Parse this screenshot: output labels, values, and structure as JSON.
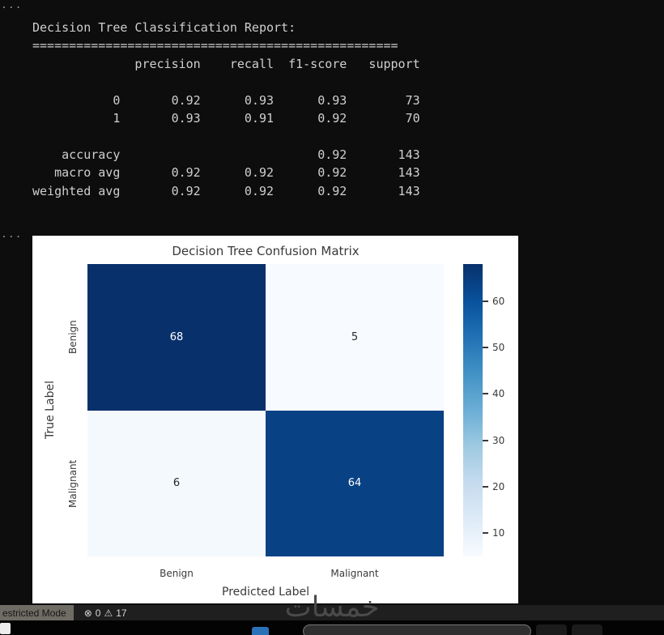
{
  "editor": {
    "overflow_indicator": "..."
  },
  "report": {
    "lines": [
      "Decision Tree Classification Report:",
      "==================================================",
      "              precision    recall  f1-score   support",
      "",
      "           0       0.92      0.93      0.93        73",
      "           1       0.93      0.91      0.92        70",
      "",
      "    accuracy                           0.92       143",
      "   macro avg       0.92      0.92      0.92       143",
      "weighted avg       0.92      0.92      0.92       143"
    ]
  },
  "chart_data": {
    "type": "heatmap",
    "title": "Decision Tree Confusion Matrix",
    "xlabel": "Predicted Label",
    "ylabel": "True Label",
    "x_categories": [
      "Benign",
      "Malignant"
    ],
    "y_categories": [
      "Benign",
      "Malignant"
    ],
    "values": [
      [
        68,
        5
      ],
      [
        6,
        64
      ]
    ],
    "vmin": 5,
    "vmax": 68,
    "colormap": "Blues",
    "colorbar_ticks": [
      10,
      20,
      30,
      40,
      50,
      60
    ],
    "colorbar_position": "right",
    "figure_bg": "#ffffff",
    "dark_cell_color": "#08306b",
    "light_cell_color": "#f7fbff",
    "cell_text_on_dark": "#ffffff",
    "cell_text_on_light": "#262626",
    "axis_text_color": "#3a3a3a"
  },
  "statusbar": {
    "restricted_mode_label": "estricted Mode",
    "error_icon": "⊗",
    "error_count": "0",
    "warning_icon": "⚠",
    "warning_count": "17"
  },
  "watermark": "خمسات"
}
